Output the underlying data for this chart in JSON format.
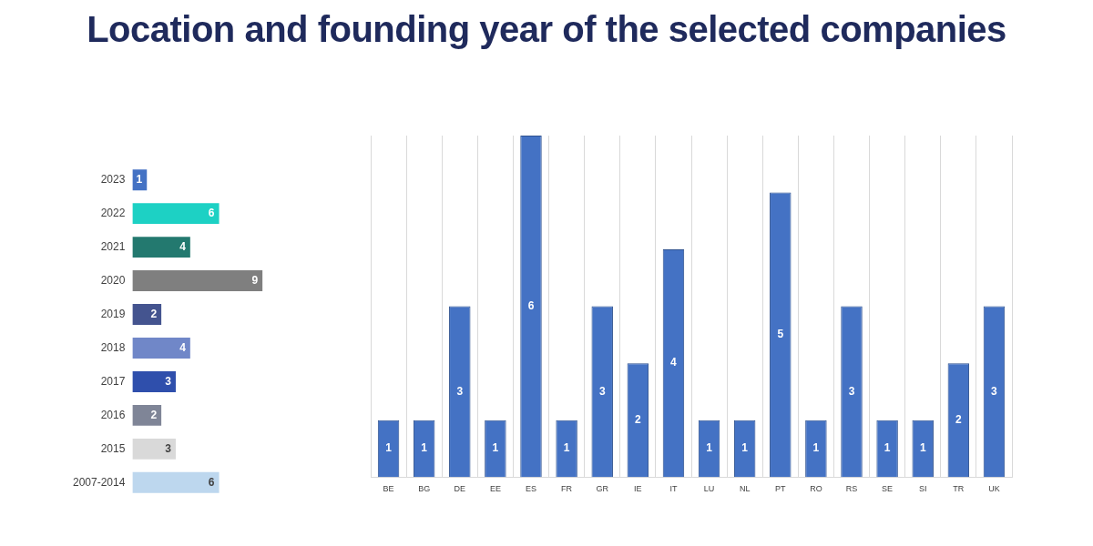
{
  "chart_data": [
    {
      "type": "bar",
      "title": "Location and founding year of the selected companies",
      "orientation": "horizontal",
      "categories": [
        "2023",
        "2022",
        "2021",
        "2020",
        "2019",
        "2018",
        "2017",
        "2016",
        "2015",
        "2007-2014"
      ],
      "values": [
        1,
        6,
        4,
        9,
        2,
        4,
        3,
        2,
        3,
        6
      ],
      "colors": [
        "#4472c4",
        "#1dd1c4",
        "#23796f",
        "#7f7f7f",
        "#44548f",
        "#7087c8",
        "#2f4fac",
        "#7f8597",
        "#d9d9d9",
        "#bdd7ee"
      ],
      "data_labels": true,
      "tick_labels": "y",
      "grid": false,
      "legend": false
    },
    {
      "type": "bar",
      "categories": [
        "BE",
        "BG",
        "DE",
        "EE",
        "ES",
        "FR",
        "GR",
        "IE",
        "IT",
        "LU",
        "NL",
        "PT",
        "RO",
        "RS",
        "SE",
        "SI",
        "TR",
        "UK"
      ],
      "values": [
        1,
        1,
        3,
        1,
        6,
        1,
        3,
        2,
        4,
        1,
        1,
        5,
        1,
        3,
        1,
        1,
        2,
        3
      ],
      "color": "#4472c4",
      "data_labels": true,
      "tick_labels": "x",
      "grid": "x",
      "legend": false
    }
  ]
}
